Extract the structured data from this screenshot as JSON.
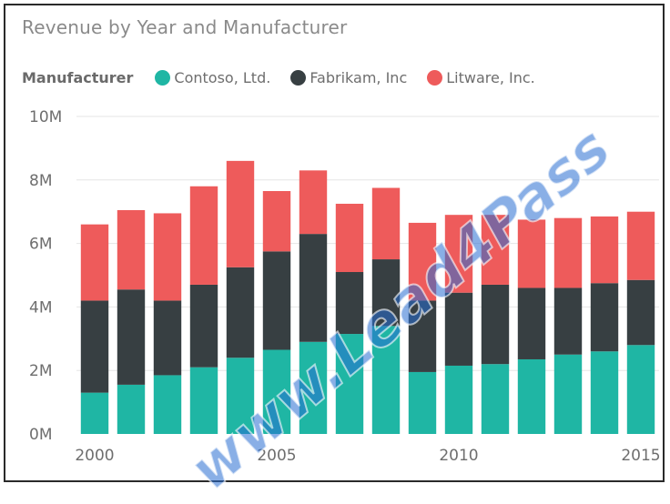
{
  "chart_data": {
    "type": "bar",
    "stacked": true,
    "title": "Revenue by Year and Manufacturer",
    "legend_title": "Manufacturer",
    "legend_position": "top-left",
    "grid": true,
    "ylim": [
      0,
      10000000
    ],
    "yticks": [
      {
        "value": 0,
        "label": "0M"
      },
      {
        "value": 2000000,
        "label": "2M"
      },
      {
        "value": 4000000,
        "label": "4M"
      },
      {
        "value": 6000000,
        "label": "6M"
      },
      {
        "value": 8000000,
        "label": "8M"
      },
      {
        "value": 10000000,
        "label": "10M"
      }
    ],
    "categories": [
      2000,
      2001,
      2002,
      2003,
      2004,
      2005,
      2006,
      2007,
      2008,
      2009,
      2010,
      2011,
      2012,
      2013,
      2014,
      2015
    ],
    "xtick_labels": [
      {
        "category": 2000,
        "label": "2000"
      },
      {
        "category": 2005,
        "label": "2005"
      },
      {
        "category": 2010,
        "label": "2010"
      },
      {
        "category": 2015,
        "label": "2015"
      }
    ],
    "series": [
      {
        "name": "Contoso, Ltd.",
        "color": "#1fb6a4",
        "values": [
          1300000,
          1550000,
          1850000,
          2100000,
          2400000,
          2650000,
          2900000,
          3150000,
          3400000,
          1950000,
          2150000,
          2200000,
          2350000,
          2500000,
          2600000,
          2800000
        ]
      },
      {
        "name": "Fabrikam, Inc",
        "color": "#373f42",
        "values": [
          2900000,
          3000000,
          2350000,
          2600000,
          2850000,
          3100000,
          3400000,
          1950000,
          2100000,
          2250000,
          2300000,
          2500000,
          2250000,
          2100000,
          2150000,
          2050000
        ]
      },
      {
        "name": "Litware, Inc.",
        "color": "#ee5b5b",
        "values": [
          2400000,
          2500000,
          2750000,
          3100000,
          3350000,
          1900000,
          2000000,
          2150000,
          2250000,
          2450000,
          2450000,
          2200000,
          2150000,
          2200000,
          2100000,
          2150000
        ]
      }
    ]
  },
  "watermark": "www.Lead4Pass"
}
